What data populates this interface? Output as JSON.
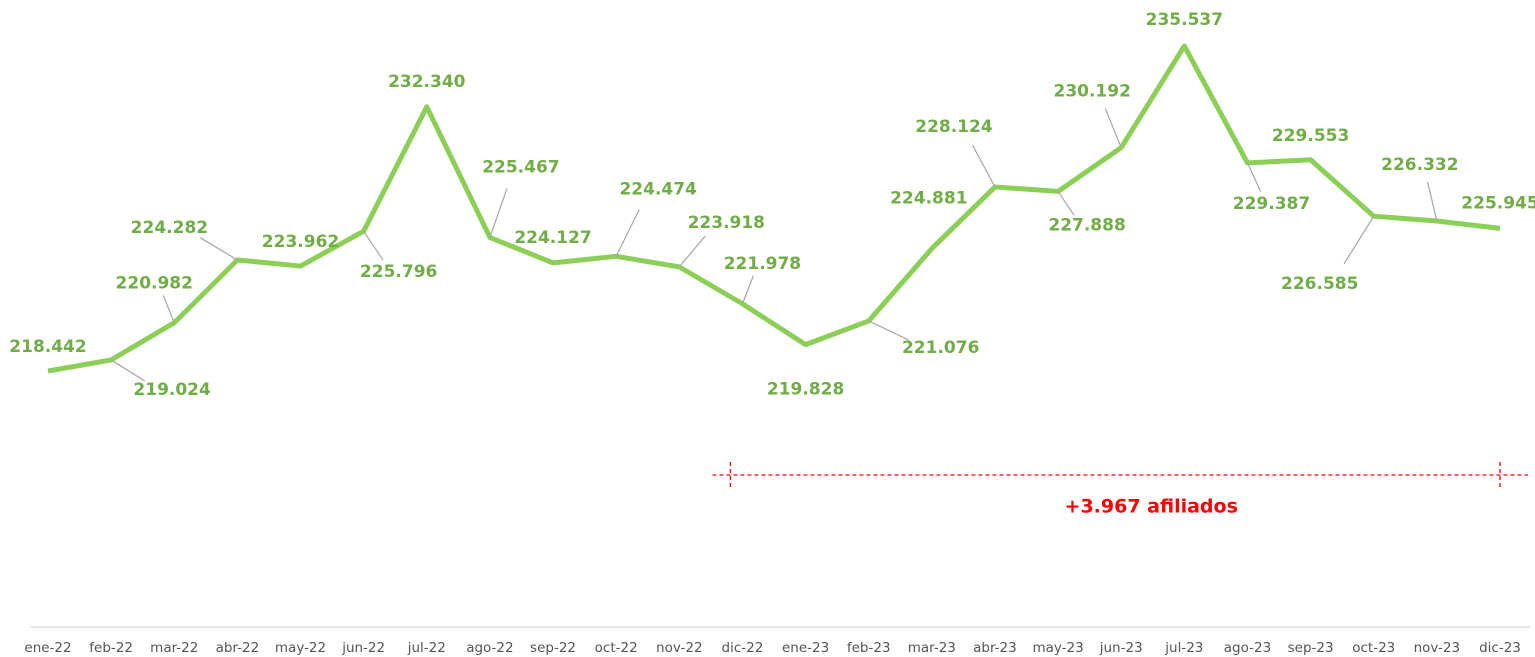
{
  "chart_data": {
    "type": "line",
    "categories": [
      "ene-22",
      "feb-22",
      "mar-22",
      "abr-22",
      "may-22",
      "jun-22",
      "jul-22",
      "ago-22",
      "sep-22",
      "oct-22",
      "nov-22",
      "dic-22",
      "ene-23",
      "feb-23",
      "mar-23",
      "abr-23",
      "may-23",
      "jun-23",
      "jul-23",
      "ago-23",
      "sep-23",
      "oct-23",
      "nov-23",
      "dic-23"
    ],
    "series": [
      {
        "name": "afiliados",
        "color": "#8ccf57",
        "values": [
          218442,
          219024,
          220982,
          224282,
          223962,
          225796,
          232340,
          225467,
          224127,
          224474,
          223918,
          221978,
          219828,
          221076,
          224881,
          228124,
          227888,
          230192,
          235537,
          229387,
          229553,
          226585,
          226332,
          225945
        ],
        "value_labels": [
          "218.442",
          "219.024",
          "220.982",
          "224.282",
          "223.962",
          "225.796",
          "232.340",
          "225.467",
          "224.127",
          "224.474",
          "223.918",
          "221.978",
          "219.828",
          "221.076",
          "224.881",
          "228.124",
          "227.888",
          "230.192",
          "235.537",
          "229.387",
          "229.553",
          "226.585",
          "226.332",
          "225.945"
        ]
      }
    ],
    "annotation": "+3.967 afiliados"
  }
}
